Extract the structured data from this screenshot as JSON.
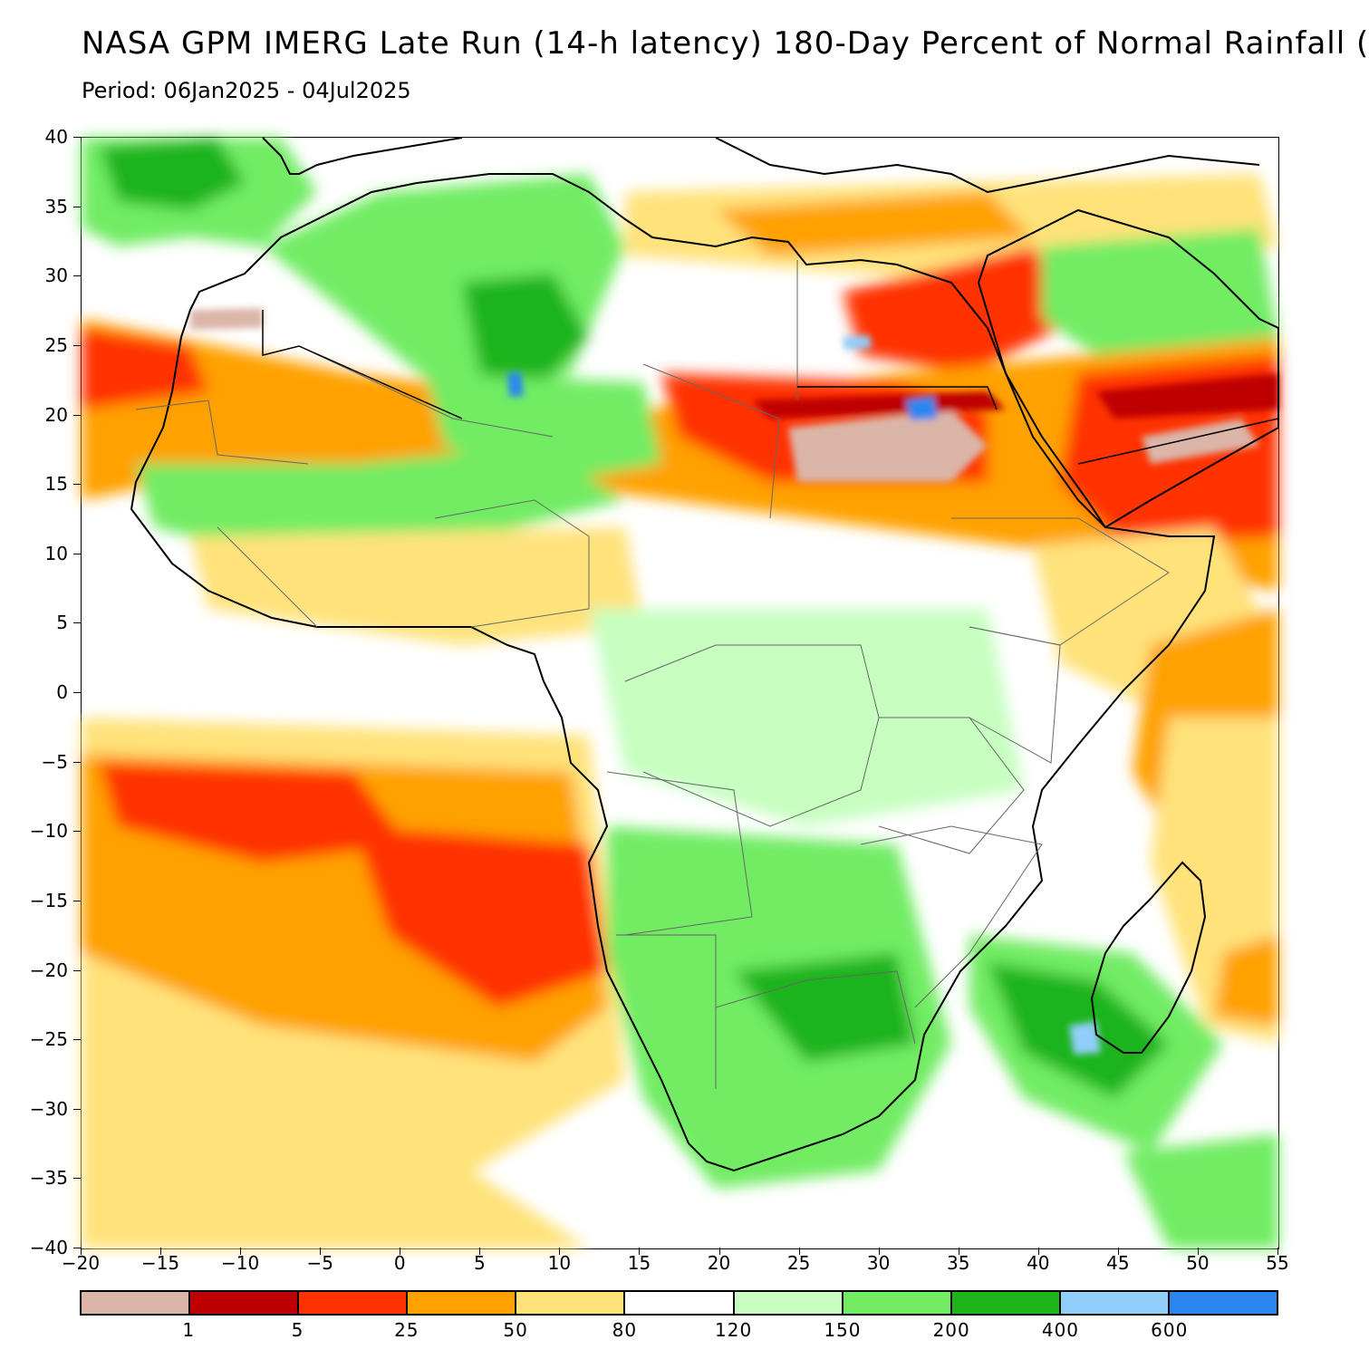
{
  "header": {
    "title": "NASA GPM IMERG Late Run (14-h latency) 180-Day Percent of Normal Rainfall (",
    "period": "Period: 06Jan2025 - 04Jul2025"
  },
  "axes": {
    "y_ticks": [
      "40",
      "35",
      "30",
      "25",
      "20",
      "15",
      "10",
      "5",
      "0",
      "−5",
      "−10",
      "−15",
      "−20",
      "−25",
      "−30",
      "−35",
      "−40"
    ],
    "y_values": [
      40,
      35,
      30,
      25,
      20,
      15,
      10,
      5,
      0,
      -5,
      -10,
      -15,
      -20,
      -25,
      -30,
      -35,
      -40
    ],
    "x_ticks": [
      "−20",
      "−15",
      "−10",
      "−5",
      "0",
      "5",
      "10",
      "15",
      "20",
      "25",
      "30",
      "35",
      "40",
      "45",
      "50",
      "55"
    ],
    "x_values": [
      -20,
      -15,
      -10,
      -5,
      0,
      5,
      10,
      15,
      20,
      25,
      30,
      35,
      40,
      45,
      50,
      55
    ],
    "lon_range": [
      -20,
      55
    ],
    "lat_range": [
      -40,
      40
    ]
  },
  "legend": {
    "colors": [
      "#dbb5a8",
      "#bd0000",
      "#ff3300",
      "#ffa100",
      "#ffe27a",
      "#ffffff",
      "#c6ffc0",
      "#71ec63",
      "#1fb41c",
      "#91cefb",
      "#2c86f0"
    ],
    "labels": [
      "1",
      "5",
      "25",
      "50",
      "80",
      "120",
      "150",
      "200",
      "400",
      "600"
    ]
  },
  "map": {
    "region": "Africa",
    "palette": {
      "ocean_bg": "#ffffff",
      "brown": "#dbb5a8",
      "darkred": "#bd0000",
      "red": "#ff3300",
      "orange": "#ffa100",
      "yellow": "#ffe27a",
      "lightgreen": "#c6ffc0",
      "green": "#71ec63",
      "darkgreen": "#1fb41c",
      "lightblue": "#91cefb",
      "blue": "#2c86f0"
    }
  }
}
